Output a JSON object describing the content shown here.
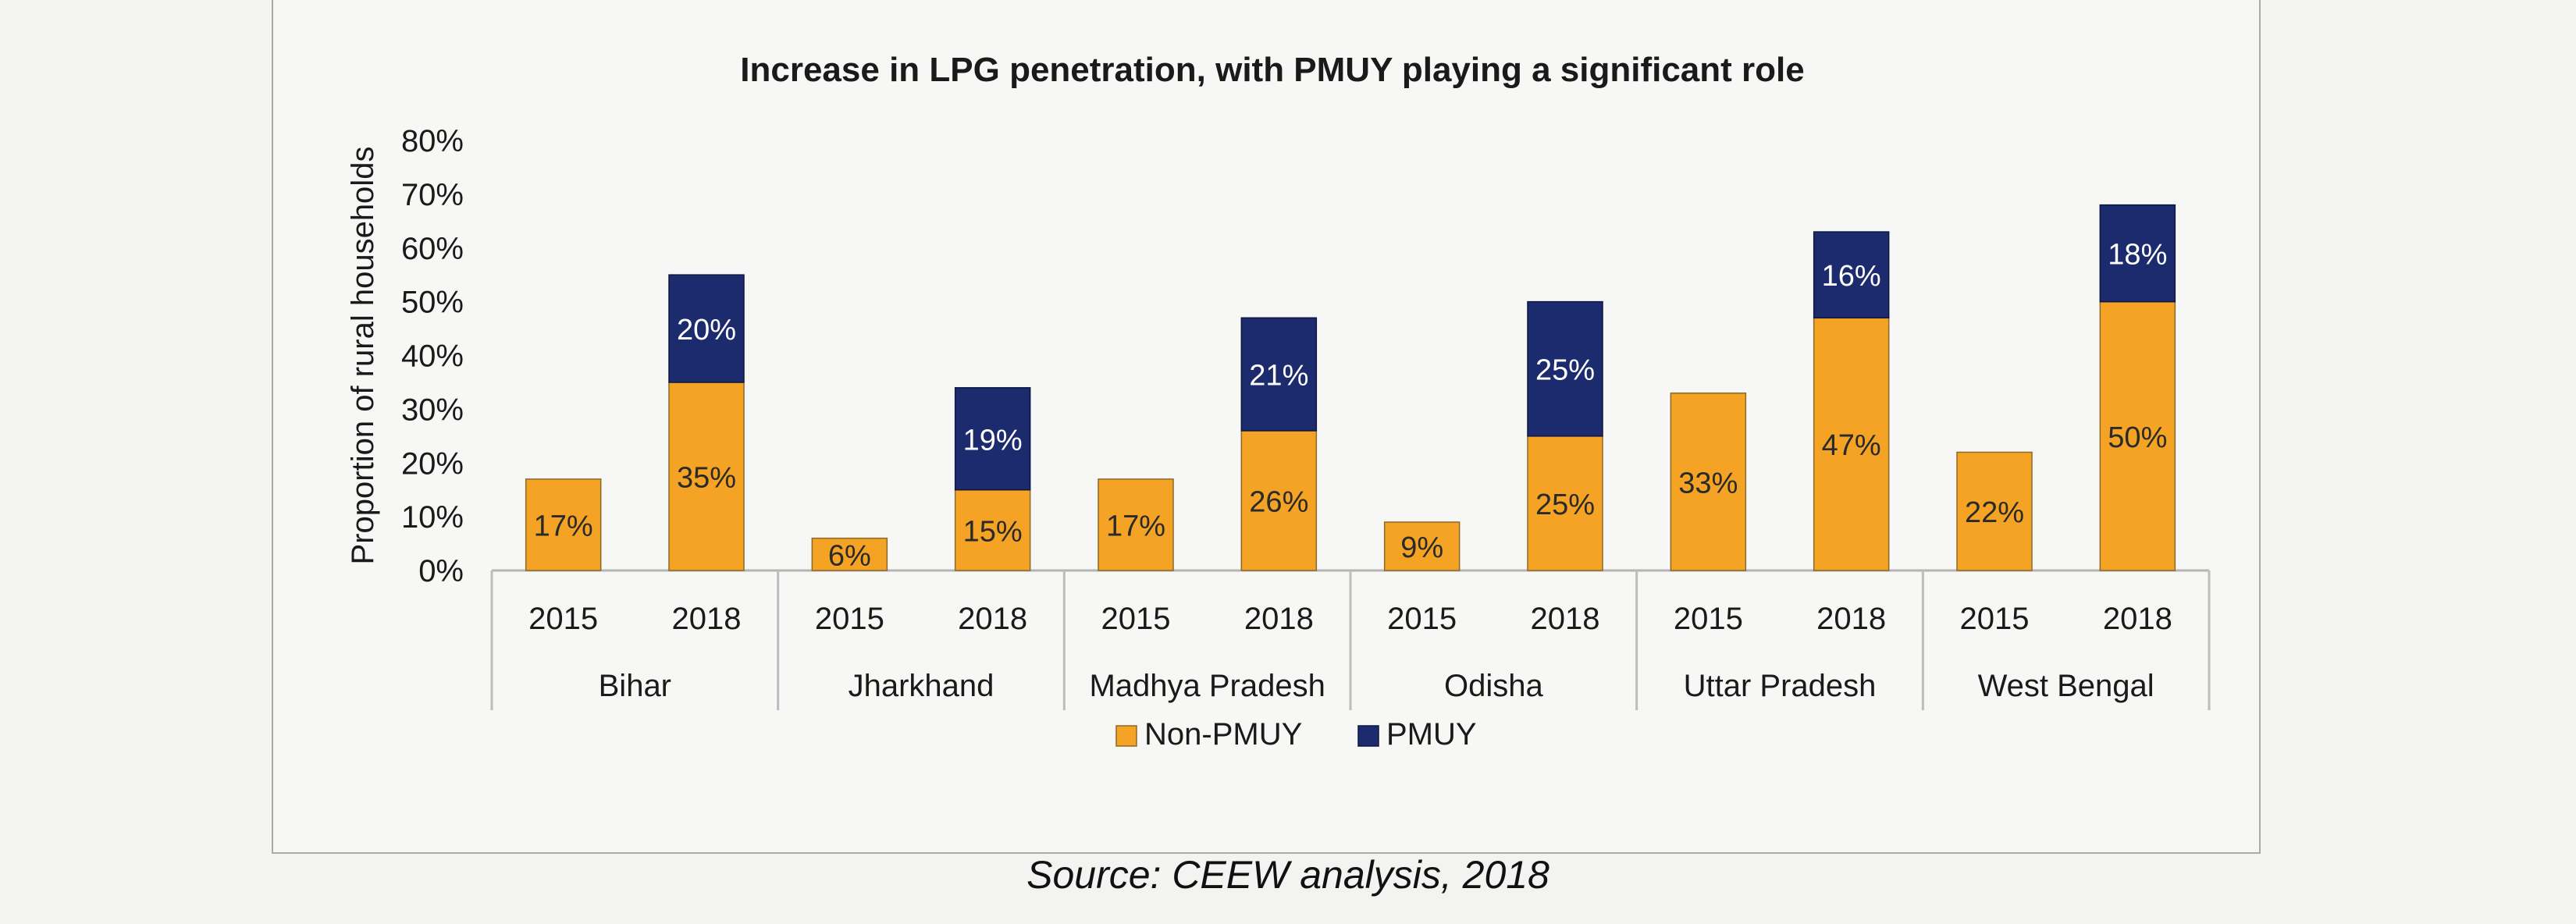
{
  "chart_data": {
    "type": "bar",
    "stacked": true,
    "title": "Increase in LPG penetration, with PMUY playing a significant role",
    "ylabel": "Proportion of rural households",
    "xlabel": "",
    "ylim": [
      0,
      80
    ],
    "yticks": [
      "0%",
      "10%",
      "20%",
      "30%",
      "40%",
      "50%",
      "60%",
      "70%",
      "80%"
    ],
    "groups": [
      {
        "name": "Bihar",
        "years": [
          "2015",
          "2018"
        ],
        "non_pmuy": [
          17,
          35
        ],
        "pmuy": [
          0,
          20
        ]
      },
      {
        "name": "Jharkhand",
        "years": [
          "2015",
          "2018"
        ],
        "non_pmuy": [
          6,
          15
        ],
        "pmuy": [
          0,
          19
        ]
      },
      {
        "name": "Madhya Pradesh",
        "years": [
          "2015",
          "2018"
        ],
        "non_pmuy": [
          17,
          26
        ],
        "pmuy": [
          0,
          21
        ]
      },
      {
        "name": "Odisha",
        "years": [
          "2015",
          "2018"
        ],
        "non_pmuy": [
          9,
          25
        ],
        "pmuy": [
          0,
          25
        ]
      },
      {
        "name": "Uttar Pradesh",
        "years": [
          "2015",
          "2018"
        ],
        "non_pmuy": [
          33,
          47
        ],
        "pmuy": [
          0,
          16
        ]
      },
      {
        "name": "West Bengal",
        "years": [
          "2015",
          "2018"
        ],
        "non_pmuy": [
          22,
          50
        ],
        "pmuy": [
          0,
          18
        ]
      }
    ],
    "series": [
      {
        "name": "Non-PMUY",
        "color": "#f4a324"
      },
      {
        "name": "PMUY",
        "color": "#1c2a6e"
      }
    ],
    "legend_position": "bottom",
    "grid": false
  },
  "source": "Source: CEEW analysis, 2018"
}
